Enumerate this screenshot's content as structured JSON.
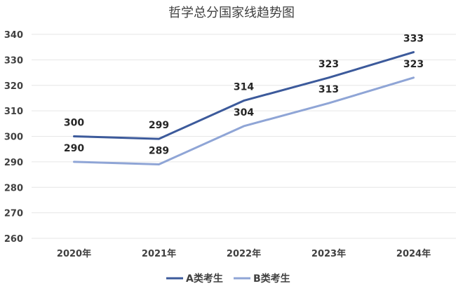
{
  "chart_data": {
    "type": "line",
    "title": "哲学总分国家线趋势图",
    "xlabel": "",
    "ylabel": "",
    "categories": [
      "2020年",
      "2021年",
      "2022年",
      "2023年",
      "2024年"
    ],
    "ylim": [
      260,
      340
    ],
    "yticks": [
      "260",
      "270",
      "280",
      "290",
      "300",
      "310",
      "320",
      "330",
      "340"
    ],
    "grid": true,
    "legend_position": "bottom",
    "series": [
      {
        "name": "A类考生",
        "values": [
          300,
          299,
          314,
          323,
          333
        ],
        "color": "#3c5a9b"
      },
      {
        "name": "B类考生",
        "values": [
          290,
          289,
          304,
          313,
          323
        ],
        "color": "#8fa5d6"
      }
    ]
  }
}
